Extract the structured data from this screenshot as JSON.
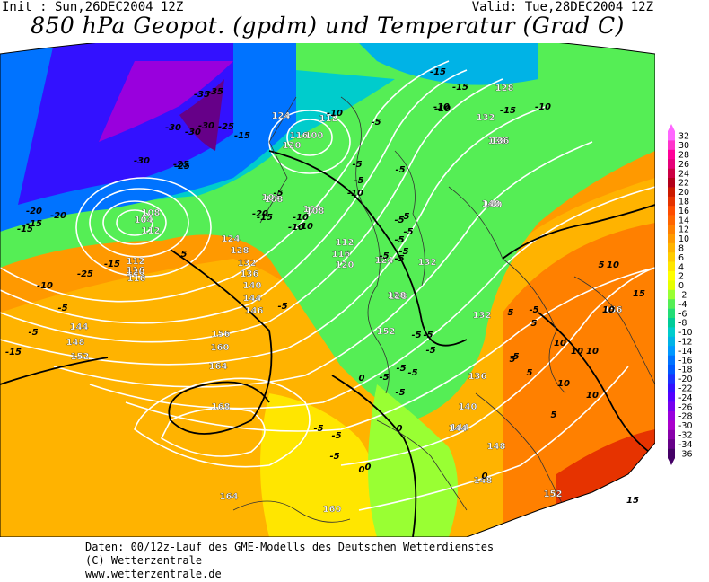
{
  "header": {
    "init": "Init : Sun,26DEC2004 12Z",
    "valid": "Valid: Tue,28DEC2004 12Z",
    "title": "850 hPa Geopot. (gpdm) und Temperatur (Grad C)"
  },
  "footer": {
    "line1": "Daten: 00/12z-Lauf des GME-Modells des Deutschen Wetterdienstes",
    "line2": "(C) Wetterzentrale",
    "line3": "www.wetterzentrale.de"
  },
  "colorbar": {
    "labels": [
      "32",
      "30",
      "28",
      "26",
      "24",
      "22",
      "20",
      "18",
      "16",
      "14",
      "12",
      "10",
      "8",
      "6",
      "4",
      "2",
      "0",
      "-2",
      "-4",
      "-6",
      "-8",
      "-10",
      "-12",
      "-14",
      "-16",
      "-18",
      "-20",
      "-22",
      "-24",
      "-26",
      "-28",
      "-30",
      "-32",
      "-34",
      "-36"
    ],
    "colors": [
      "#ff66ff",
      "#ff33cc",
      "#ff0099",
      "#e6007a",
      "#cc0044",
      "#b3001a",
      "#cc1a00",
      "#e63300",
      "#ff4d00",
      "#ff6600",
      "#ff8000",
      "#ff9900",
      "#ffb300",
      "#ffcc00",
      "#ffe600",
      "#ffff00",
      "#e6ff00",
      "#99ff33",
      "#55ee55",
      "#22dd77",
      "#00cc99",
      "#00cccc",
      "#00b3e6",
      "#0099ff",
      "#0073ff",
      "#0059ff",
      "#1a33ff",
      "#3311ff",
      "#5500ff",
      "#7700ee",
      "#9900dd",
      "#aa00cc",
      "#8800aa",
      "#660088",
      "#440066"
    ]
  },
  "geopotential_labels": [
    "128",
    "132",
    "136",
    "140",
    "100",
    "112",
    "124",
    "116",
    "120",
    "108",
    "104",
    "124",
    "128",
    "132",
    "136",
    "140",
    "144",
    "146",
    "148",
    "144",
    "152",
    "156",
    "160",
    "164",
    "168",
    "164",
    "160",
    "152",
    "148",
    "144",
    "140",
    "136",
    "132",
    "128",
    "124",
    "120",
    "116",
    "112",
    "108",
    "104",
    "156",
    "152",
    "144",
    "148",
    "140",
    "136",
    "132",
    "128",
    "116",
    "112",
    "108",
    "104",
    "112",
    "116",
    "120"
  ],
  "temperature_labels": [
    "-15",
    "-15",
    "-15",
    "-10",
    "-10",
    "-5",
    "-5",
    "-5",
    "-5",
    "-10",
    "-15",
    "-20",
    "-25",
    "-30",
    "-35",
    "-35",
    "-30",
    "-25",
    "-25",
    "-30",
    "-20",
    "-15",
    "-10",
    "-5",
    "0",
    "5",
    "-5",
    "-5",
    "-10",
    "-10",
    "-5",
    "0",
    "5",
    "10",
    "10",
    "10",
    "15",
    "10",
    "10",
    "5",
    "-5",
    "-5",
    "-5",
    "-5",
    "0",
    "-15",
    "-5",
    "-5",
    "-5",
    "-5",
    "5",
    "-5",
    "0",
    "-5",
    "-15",
    "-25",
    "-30",
    "-20",
    "-10",
    "-15",
    "-5",
    "-10",
    "-5",
    "-15",
    "-10",
    "-5",
    "-5",
    "10",
    "10",
    "5",
    "15",
    "5",
    "-5",
    "5",
    "0",
    "-5",
    "-5",
    "-5",
    "-5"
  ]
}
